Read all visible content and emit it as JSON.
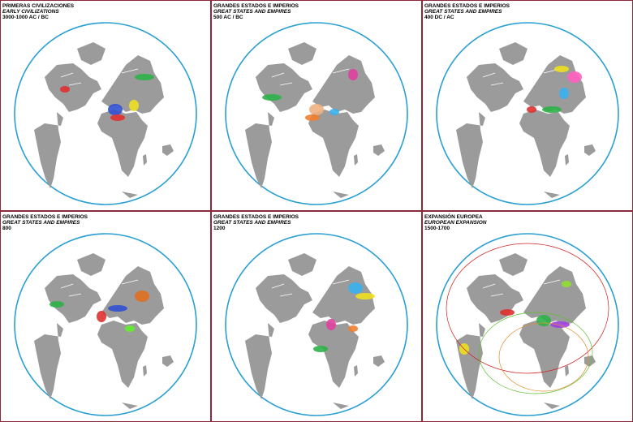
{
  "panels": [
    {
      "title": "PRIMERAS CIVILIZACIONES",
      "subtitle": "EARLY CIVILIZATIONS",
      "period": "3000-1000 AC / BC"
    },
    {
      "title": "GRANDES ESTADOS E IMPERIOS",
      "subtitle": "GREAT STATES AND EMPIRES",
      "period": "500 AC / BC"
    },
    {
      "title": "GRANDES ESTADOS E IMPERIOS",
      "subtitle": "GREAT STATES AND EMPIRES",
      "period": "400 DC / AC"
    },
    {
      "title": "GRANDES ESTADOS E IMPERIOS",
      "subtitle": "GREAT STATES AND EMPIRES",
      "period": "800"
    },
    {
      "title": "GRANDES ESTADOS E IMPERIOS",
      "subtitle": "GREAT STATES AND EMPIRES",
      "period": "1200"
    },
    {
      "title": "EXPANSIÓN EUROPEA",
      "subtitle": "EUROPEAN EXPANSION",
      "period": "1500-1700"
    }
  ]
}
